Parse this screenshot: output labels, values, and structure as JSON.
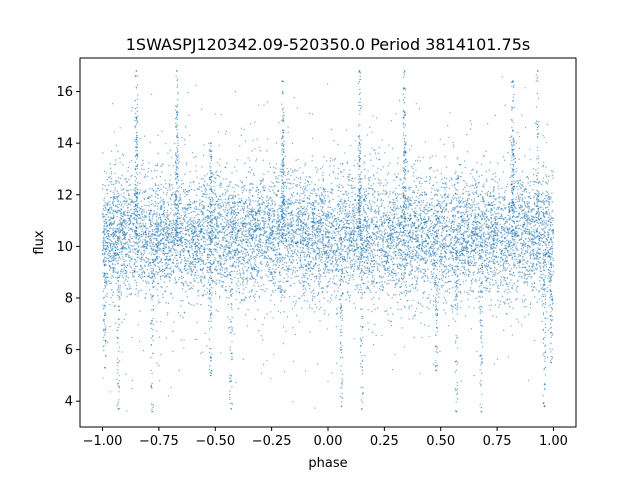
{
  "chart_data": {
    "type": "scatter",
    "title": "1SWASPJ120342.09-520350.0 Period 3814101.75s",
    "xlabel": "phase",
    "ylabel": "flux",
    "xlim": [
      -1.1,
      1.1
    ],
    "ylim": [
      3.0,
      17.3
    ],
    "x_ticks": [
      -1.0,
      -0.75,
      -0.5,
      -0.25,
      0.0,
      0.25,
      0.5,
      0.75,
      1.0
    ],
    "x_tick_labels": [
      "−1.00",
      "−0.75",
      "−0.50",
      "−0.25",
      "0.00",
      "0.25",
      "0.50",
      "0.75",
      "1.00"
    ],
    "y_ticks": [
      4,
      6,
      8,
      10,
      12,
      14,
      16
    ],
    "y_tick_labels": [
      "4",
      "6",
      "8",
      "10",
      "12",
      "14",
      "16"
    ],
    "grid": false,
    "legend": "none",
    "marker_color": "#1f77b4",
    "series": [
      {
        "phase_range": [
          -1.0,
          1.0
        ],
        "flux_center": 10.4,
        "flux_core_range": [
          8.3,
          12.6
        ],
        "flux_extent": [
          3.6,
          16.8
        ],
        "points": [
          [
            -0.85,
            16.8
          ],
          [
            -0.85,
            15.0
          ],
          [
            -0.67,
            16.8
          ],
          [
            -0.67,
            15.2
          ],
          [
            -0.52,
            14.0
          ],
          [
            -0.52,
            5.0
          ],
          [
            -0.2,
            14.5
          ],
          [
            -0.2,
            16.4
          ],
          [
            0.14,
            16.8
          ],
          [
            0.14,
            14.0
          ],
          [
            0.34,
            16.8
          ],
          [
            0.34,
            15.2
          ],
          [
            0.48,
            5.2
          ],
          [
            0.82,
            16.4
          ],
          [
            0.82,
            14.5
          ],
          [
            0.93,
            16.8
          ],
          [
            -0.93,
            3.7
          ],
          [
            -0.78,
            3.6
          ],
          [
            -0.43,
            3.7
          ],
          [
            0.06,
            3.8
          ],
          [
            0.15,
            3.7
          ],
          [
            0.57,
            3.6
          ],
          [
            0.68,
            3.6
          ],
          [
            0.96,
            3.8
          ],
          [
            -0.99,
            5.3
          ],
          [
            0.99,
            5.5
          ]
        ]
      }
    ]
  }
}
